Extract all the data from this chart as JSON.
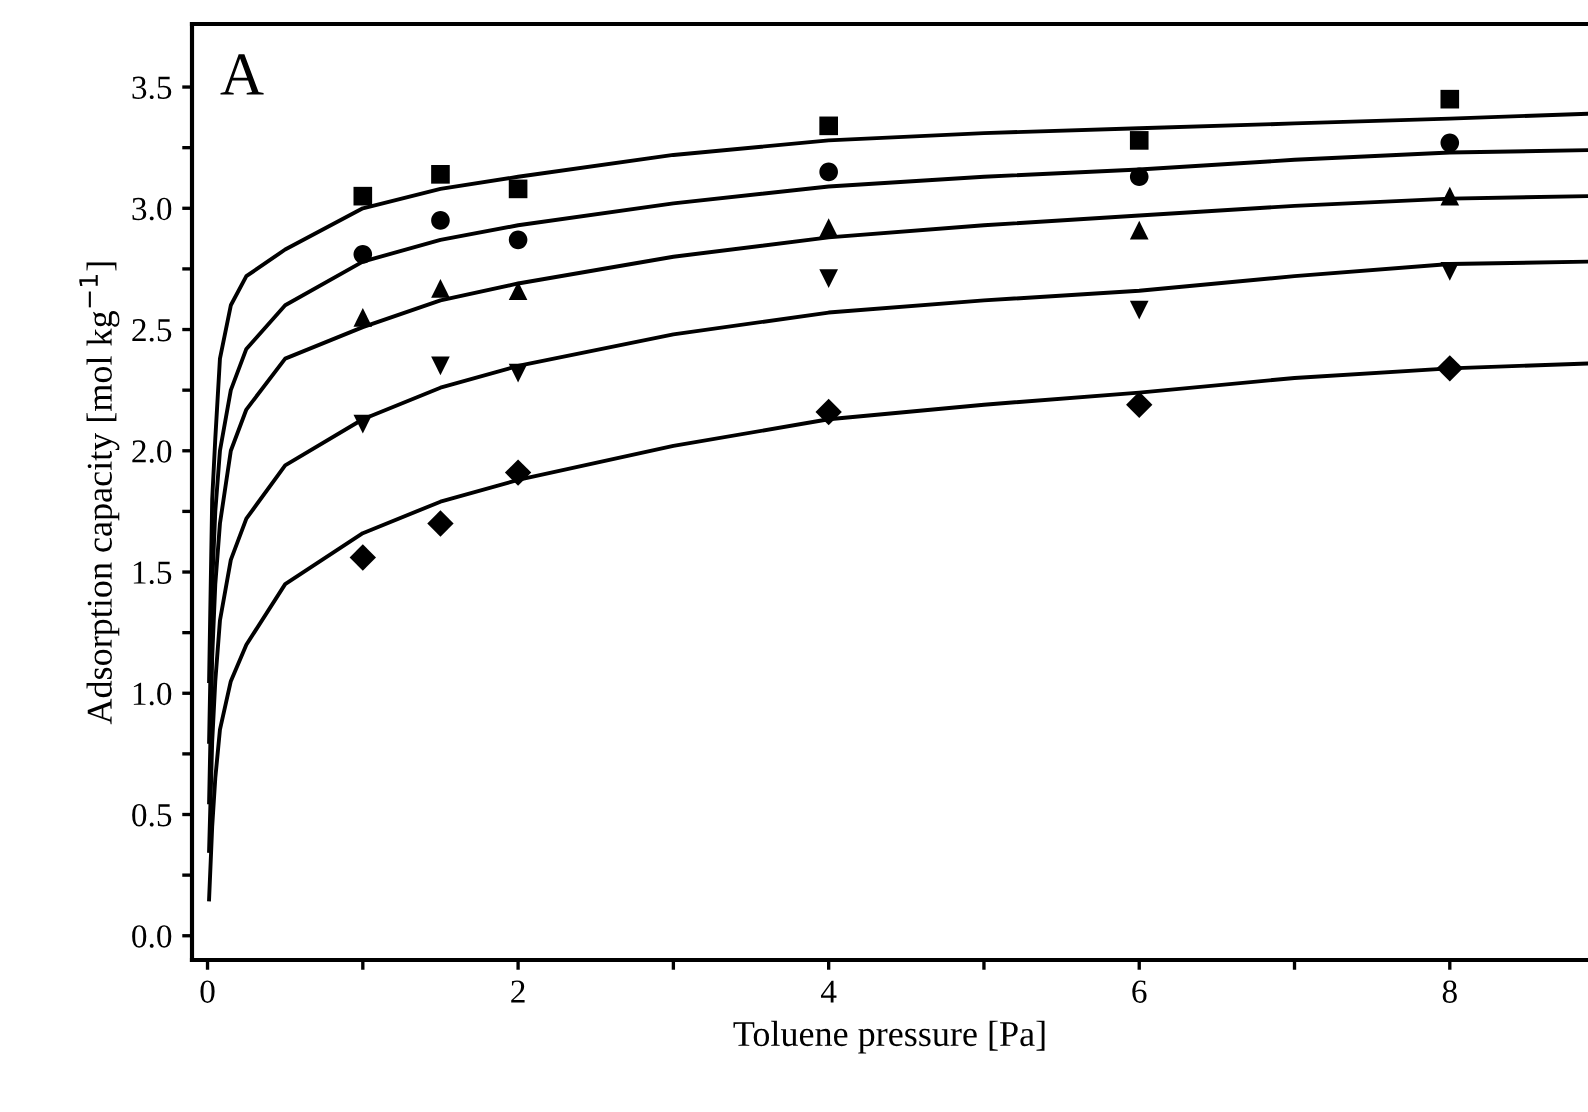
{
  "chart_data": {
    "type": "scatter",
    "xlabel": "Toluene pressure [Pa]",
    "ylabel": "Adsorption capacity [mol kg$^{−1}$]",
    "annotations": [
      "A"
    ],
    "xlim": [
      -0.1,
      8.89
    ],
    "ylim": [
      -0.1,
      3.76
    ],
    "xticks": [
      0,
      {
        "value": 1,
        "label": null
      },
      2,
      {
        "value": 3,
        "label": null
      },
      4,
      {
        "value": 5,
        "label": null
      },
      6,
      {
        "value": 7,
        "label": null
      },
      8
    ],
    "yticks": [
      {
        "value": 0,
        "label": "0.0"
      },
      {
        "value": 0.25,
        "label": null
      },
      0.5,
      {
        "value": 0.75,
        "label": null
      },
      {
        "value": 1,
        "label": "1.0"
      },
      {
        "value": 1.25,
        "label": null
      },
      1.5,
      {
        "value": 1.75,
        "label": null
      },
      {
        "value": 2,
        "label": "2.0"
      },
      {
        "value": 2.25,
        "label": null
      },
      2.5,
      {
        "value": 2.75,
        "label": null
      },
      {
        "value": 3,
        "label": "3.0"
      },
      {
        "value": 3.25,
        "label": null
      },
      3.5
    ],
    "grid": false,
    "legend": false,
    "series": [
      {
        "marker": "square",
        "color": "#000000",
        "x": [
          1,
          1.5,
          2,
          4,
          6,
          8
        ],
        "values": [
          3.05,
          3.14,
          3.08,
          3.34,
          3.28,
          3.45
        ]
      },
      {
        "marker": "circle",
        "color": "#000000",
        "x": [
          1,
          1.5,
          2,
          4,
          6,
          8
        ],
        "values": [
          2.81,
          2.95,
          2.87,
          3.15,
          3.13,
          3.27
        ]
      },
      {
        "marker": "triangle",
        "color": "#000000",
        "x": [
          1,
          1.5,
          2,
          4,
          6,
          8
        ],
        "values": [
          2.55,
          2.67,
          2.66,
          2.92,
          2.91,
          3.05
        ]
      },
      {
        "marker": "triangle_down",
        "color": "#000000",
        "x": [
          1,
          1.5,
          2,
          4,
          6,
          8
        ],
        "values": [
          2.11,
          2.35,
          2.32,
          2.71,
          2.58,
          2.74
        ]
      },
      {
        "marker": "diamond",
        "color": "#000000",
        "x": [
          1,
          1.5,
          2,
          4,
          6,
          8
        ],
        "values": [
          1.56,
          1.7,
          1.91,
          2.16,
          2.19,
          2.34
        ]
      },
      {
        "type": "line",
        "line_style": "solid",
        "color": "#000000",
        "x": [
          0.01,
          0.03,
          0.05,
          0.08,
          0.15,
          0.25,
          0.5,
          1,
          1.5,
          2,
          3,
          4,
          5,
          6,
          7,
          8,
          8.89
        ],
        "values": [
          1.05,
          1.8,
          2.05,
          2.38,
          2.6,
          2.72,
          2.83,
          3.0,
          3.08,
          3.13,
          3.22,
          3.28,
          3.31,
          3.33,
          3.35,
          3.37,
          3.39
        ]
      },
      {
        "type": "line",
        "line_style": "solid",
        "color": "#000000",
        "x": [
          0.01,
          0.03,
          0.05,
          0.08,
          0.15,
          0.25,
          0.5,
          1,
          1.5,
          2,
          3,
          4,
          5,
          6,
          7,
          8,
          8.89
        ],
        "values": [
          0.8,
          1.45,
          1.75,
          2.0,
          2.25,
          2.42,
          2.6,
          2.78,
          2.87,
          2.93,
          3.02,
          3.09,
          3.13,
          3.16,
          3.2,
          3.23,
          3.24
        ]
      },
      {
        "type": "line",
        "line_style": "solid",
        "color": "#000000",
        "x": [
          0.01,
          0.03,
          0.05,
          0.08,
          0.15,
          0.25,
          0.5,
          1,
          1.5,
          2,
          3,
          4,
          5,
          6,
          7,
          8,
          8.89
        ],
        "values": [
          0.55,
          1.15,
          1.45,
          1.7,
          2.0,
          2.17,
          2.38,
          2.51,
          2.62,
          2.69,
          2.8,
          2.88,
          2.93,
          2.97,
          3.01,
          3.04,
          3.05
        ]
      },
      {
        "type": "line",
        "line_style": "solid",
        "color": "#000000",
        "x": [
          0.01,
          0.03,
          0.05,
          0.08,
          0.15,
          0.25,
          0.5,
          1,
          1.5,
          2,
          3,
          4,
          5,
          6,
          7,
          8,
          8.89
        ],
        "values": [
          0.35,
          0.8,
          1.05,
          1.3,
          1.55,
          1.72,
          1.94,
          2.13,
          2.26,
          2.35,
          2.48,
          2.57,
          2.62,
          2.66,
          2.72,
          2.77,
          2.78
        ]
      },
      {
        "type": "line",
        "line_style": "solid",
        "color": "#000000",
        "x": [
          0.01,
          0.03,
          0.05,
          0.08,
          0.15,
          0.25,
          0.5,
          1,
          1.5,
          2,
          3,
          4,
          5,
          6,
          7,
          8,
          8.89
        ],
        "values": [
          0.15,
          0.45,
          0.65,
          0.85,
          1.05,
          1.2,
          1.45,
          1.66,
          1.79,
          1.88,
          2.02,
          2.13,
          2.19,
          2.24,
          2.3,
          2.34,
          2.36
        ]
      }
    ]
  }
}
